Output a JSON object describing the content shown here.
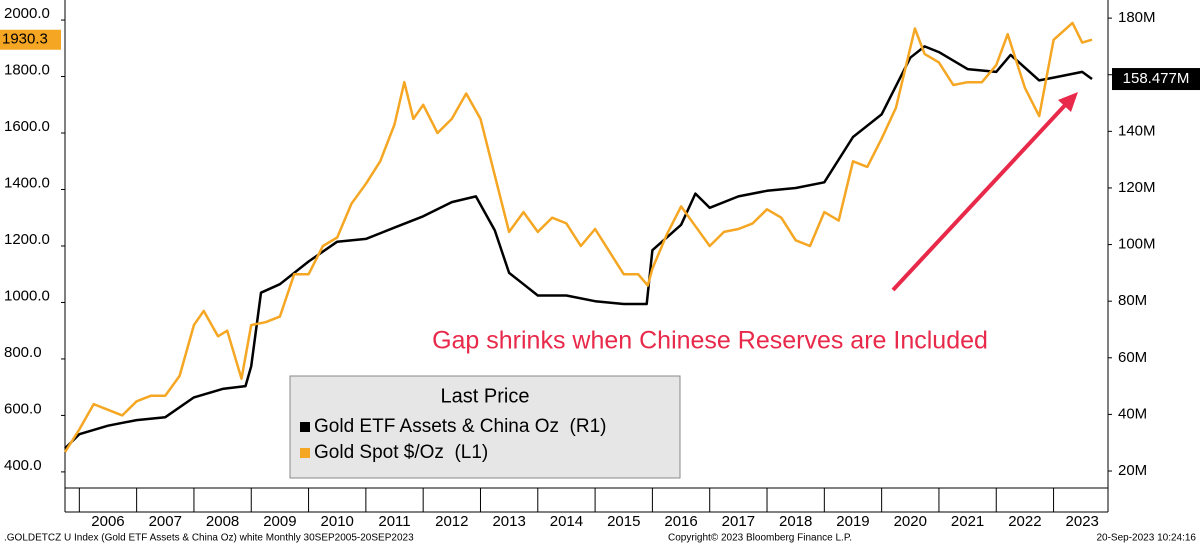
{
  "chart_data": {
    "type": "line",
    "annotation": "Gap shrinks when Chinese Reserves are Included",
    "legend_title": "Last Price",
    "footer_left": ".GOLDETCZ U Index (Gold ETF Assets & China Oz) white  Monthly 30SEP2005-20SEP2023",
    "footer_center": "Copyright© 2023 Bloomberg Finance L.P.",
    "footer_right": "20-Sep-2023 10:24:16",
    "xlim": [
      2005.75,
      2023.95
    ],
    "xticks": [
      2006,
      2007,
      2008,
      2009,
      2010,
      2011,
      2012,
      2013,
      2014,
      2015,
      2016,
      2017,
      2018,
      2019,
      2020,
      2021,
      2022,
      2023
    ],
    "ylim": [
      343,
      2071
    ],
    "yticks": [
      {
        "value": 400,
        "label": "400.0"
      },
      {
        "value": 600,
        "label": "600.0"
      },
      {
        "value": 800,
        "label": "800.0"
      },
      {
        "value": 1000,
        "label": "1000.0"
      },
      {
        "value": 1200,
        "label": "1200.0"
      },
      {
        "value": 1400,
        "label": "1400.0"
      },
      {
        "value": 1600,
        "label": "1600.0"
      },
      {
        "value": 1800,
        "label": "1800.0"
      },
      {
        "value": 2000,
        "label": "2000.0"
      }
    ],
    "y2lim": [
      14,
      186.4
    ],
    "y2ticks": [
      {
        "value": 20,
        "label": "20M"
      },
      {
        "value": 40,
        "label": "40M"
      },
      {
        "value": 60,
        "label": "60M"
      },
      {
        "value": 80,
        "label": "80M"
      },
      {
        "value": 100,
        "label": "100M"
      },
      {
        "value": 120,
        "label": "120M"
      },
      {
        "value": 140,
        "label": "140M"
      },
      {
        "value": 160,
        "label": "160M"
      },
      {
        "value": 180,
        "label": "180M"
      }
    ],
    "series": [
      {
        "name": "Gold ETF Assets & China Oz  (R1)",
        "color": "#000000",
        "axis": "y2",
        "last_price_label": "158.477M",
        "x": [
          2005.75,
          2006.0,
          2006.5,
          2007.0,
          2007.5,
          2008.0,
          2008.5,
          2008.9,
          2009.0,
          2009.17,
          2009.5,
          2010.0,
          2010.5,
          2011.0,
          2011.5,
          2012.0,
          2012.5,
          2012.92,
          2013.25,
          2013.5,
          2013.75,
          2014.0,
          2014.5,
          2015.0,
          2015.5,
          2015.9,
          2016.0,
          2016.5,
          2016.75,
          2017.0,
          2017.5,
          2018.0,
          2018.5,
          2019.0,
          2019.5,
          2020.0,
          2020.5,
          2020.75,
          2021.0,
          2021.5,
          2022.0,
          2022.25,
          2022.75,
          2023.0,
          2023.5,
          2023.67
        ],
        "values": [
          28,
          33,
          36,
          38,
          39,
          46,
          49,
          50,
          57,
          83,
          86,
          94,
          101,
          102,
          106,
          110,
          115,
          117,
          105,
          90,
          86,
          82,
          82,
          80,
          79,
          79,
          98,
          107,
          118,
          113,
          117,
          119,
          120,
          122,
          138,
          146,
          166,
          170,
          168,
          162,
          161,
          167,
          158,
          159,
          161,
          158.477
        ]
      },
      {
        "name": "Gold Spot $/Oz  (L1)",
        "color": "#f5a623",
        "axis": "y",
        "last_price_label": "1930.3",
        "x": [
          2005.75,
          2006.0,
          2006.25,
          2006.5,
          2006.75,
          2007.0,
          2007.25,
          2007.5,
          2007.75,
          2008.0,
          2008.17,
          2008.42,
          2008.58,
          2008.83,
          2009.0,
          2009.25,
          2009.5,
          2009.75,
          2010.0,
          2010.25,
          2010.5,
          2010.75,
          2011.0,
          2011.25,
          2011.5,
          2011.67,
          2011.83,
          2012.0,
          2012.25,
          2012.5,
          2012.75,
          2013.0,
          2013.25,
          2013.5,
          2013.75,
          2014.0,
          2014.25,
          2014.5,
          2014.75,
          2015.0,
          2015.25,
          2015.5,
          2015.75,
          2015.92,
          2016.0,
          2016.25,
          2016.5,
          2016.75,
          2017.0,
          2017.25,
          2017.5,
          2017.75,
          2018.0,
          2018.25,
          2018.5,
          2018.75,
          2019.0,
          2019.25,
          2019.5,
          2019.75,
          2020.0,
          2020.25,
          2020.58,
          2020.75,
          2021.0,
          2021.25,
          2021.5,
          2021.75,
          2022.0,
          2022.2,
          2022.5,
          2022.75,
          2023.0,
          2023.33,
          2023.5,
          2023.67
        ],
        "values": [
          470,
          550,
          640,
          620,
          600,
          650,
          670,
          670,
          740,
          920,
          970,
          880,
          900,
          730,
          920,
          930,
          950,
          1100,
          1100,
          1200,
          1230,
          1350,
          1420,
          1500,
          1630,
          1780,
          1650,
          1700,
          1600,
          1650,
          1740,
          1650,
          1450,
          1250,
          1320,
          1250,
          1300,
          1280,
          1200,
          1260,
          1180,
          1100,
          1100,
          1060,
          1120,
          1240,
          1340,
          1270,
          1200,
          1250,
          1260,
          1280,
          1330,
          1300,
          1220,
          1200,
          1320,
          1290,
          1500,
          1480,
          1580,
          1690,
          1970,
          1880,
          1850,
          1770,
          1780,
          1780,
          1840,
          1950,
          1760,
          1660,
          1930,
          1990,
          1920,
          1930.3
        ]
      }
    ]
  }
}
